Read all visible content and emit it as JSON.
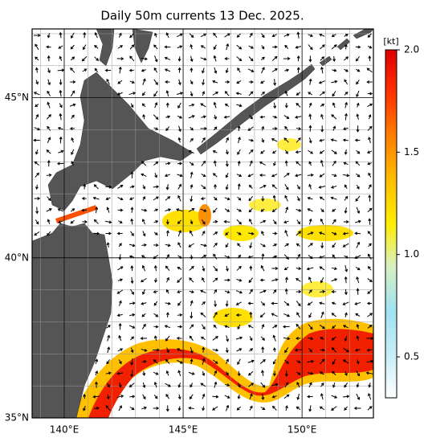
{
  "title": "Daily 50m currents 13 Dec. 2025.",
  "map": {
    "lonlim": [
      138.65,
      153
    ],
    "latlim": [
      35,
      47.15
    ],
    "lon_ticks": [
      {
        "value": 140,
        "label": "140°E"
      },
      {
        "value": 145,
        "label": "145°E"
      },
      {
        "value": 150,
        "label": "150°E"
      }
    ],
    "lat_ticks": [
      {
        "value": 35,
        "label": "35°N"
      },
      {
        "value": 40,
        "label": "40°N"
      },
      {
        "value": 45,
        "label": "45°N"
      }
    ]
  },
  "colorbar": {
    "unit": "[kt]",
    "lim": [
      0.3,
      2.0
    ],
    "ticks": [
      0.5,
      {
        "value": 1,
        "label": "1.0"
      },
      1.5,
      {
        "value": 2,
        "label": "2.0"
      }
    ]
  }
}
